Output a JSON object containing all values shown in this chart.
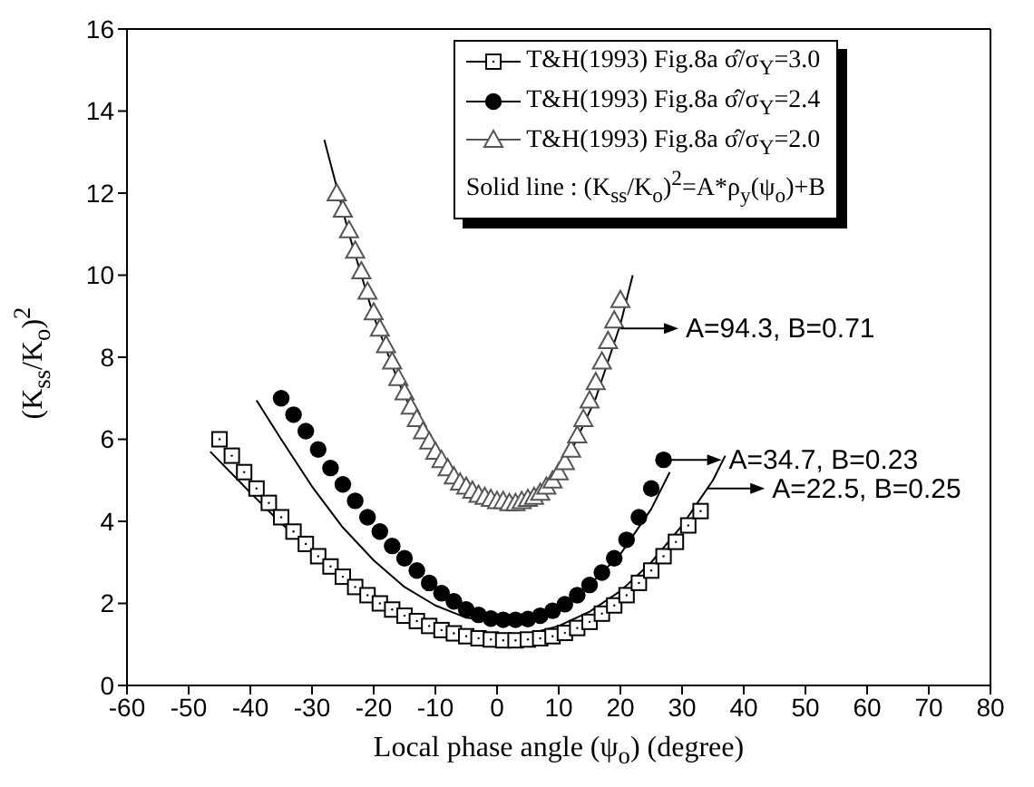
{
  "chart_data": {
    "type": "scatter",
    "xlabel": "Local phase angle (ψ$_{o}$) (degree)",
    "ylabel": "(K$_{ss}$/K$_{o}$)$^{2}$",
    "xlim": [
      -60,
      80
    ],
    "xticks": [
      -60,
      -50,
      -40,
      -30,
      -20,
      -10,
      0,
      10,
      20,
      30,
      40,
      50,
      60,
      70,
      80
    ],
    "ylim": [
      0,
      16
    ],
    "yticks": [
      0,
      2,
      4,
      6,
      8,
      10,
      12,
      14,
      16
    ],
    "legend": "top right",
    "series": [
      {
        "name": "T&H(1993) Fig.8a σ̂/σ$_{Y}$=3.0",
        "marker": "square",
        "color": "#000000",
        "x": [
          -45,
          -43,
          -41,
          -39,
          -37,
          -35,
          -33,
          -31,
          -29,
          -27,
          -25,
          -23,
          -21,
          -19,
          -17,
          -15,
          -13,
          -11,
          -9,
          -7,
          -5,
          -3,
          -1,
          1,
          3,
          5,
          7,
          9,
          11,
          13,
          15,
          17,
          19,
          21,
          23,
          25,
          27,
          29,
          31,
          33
        ],
        "values": [
          6.0,
          5.6,
          5.2,
          4.8,
          4.45,
          4.1,
          3.75,
          3.45,
          3.15,
          2.9,
          2.65,
          2.4,
          2.2,
          2.0,
          1.85,
          1.7,
          1.57,
          1.45,
          1.35,
          1.27,
          1.2,
          1.15,
          1.12,
          1.1,
          1.1,
          1.12,
          1.15,
          1.2,
          1.28,
          1.4,
          1.55,
          1.75,
          1.95,
          2.2,
          2.5,
          2.8,
          3.15,
          3.5,
          3.9,
          4.25
        ]
      },
      {
        "name": "T&H(1993) Fig.8a σ̂/σ$_{Y}$=2.4",
        "marker": "circle",
        "color": "#000000",
        "x": [
          -35,
          -33,
          -31,
          -29,
          -27,
          -25,
          -23,
          -21,
          -19,
          -17,
          -15,
          -13,
          -11,
          -9,
          -7,
          -5,
          -3,
          -1,
          1,
          3,
          5,
          7,
          9,
          11,
          13,
          15,
          17,
          19,
          21,
          23,
          25,
          27
        ],
        "values": [
          7.0,
          6.6,
          6.2,
          5.75,
          5.3,
          4.9,
          4.5,
          4.1,
          3.75,
          3.4,
          3.1,
          2.8,
          2.5,
          2.25,
          2.05,
          1.85,
          1.72,
          1.63,
          1.6,
          1.6,
          1.62,
          1.7,
          1.82,
          1.98,
          2.2,
          2.45,
          2.75,
          3.1,
          3.55,
          4.1,
          4.8,
          5.5
        ]
      },
      {
        "name": "T&H(1993) Fig.8a σ̂/σ$_{Y}$=2.0",
        "marker": "triangle",
        "color": "#555555",
        "x": [
          -26,
          -25,
          -24,
          -23,
          -22,
          -21,
          -20,
          -19,
          -18,
          -17,
          -16,
          -15,
          -14,
          -13,
          -12,
          -11,
          -10,
          -9,
          -8,
          -7,
          -6,
          -5,
          -4,
          -3,
          -2,
          -1,
          0,
          1,
          2,
          3,
          4,
          5,
          6,
          7,
          8,
          9,
          10,
          11,
          12,
          13,
          14,
          15,
          16,
          17,
          18,
          19,
          20
        ],
        "values": [
          12.0,
          11.6,
          11.1,
          10.6,
          10.1,
          9.6,
          9.1,
          8.7,
          8.3,
          7.9,
          7.5,
          7.15,
          6.8,
          6.5,
          6.2,
          5.95,
          5.7,
          5.5,
          5.3,
          5.1,
          4.95,
          4.85,
          4.75,
          4.65,
          4.6,
          4.55,
          4.5,
          4.5,
          4.45,
          4.45,
          4.5,
          4.55,
          4.6,
          4.7,
          4.85,
          5.0,
          5.2,
          5.45,
          5.75,
          6.1,
          6.5,
          6.95,
          7.4,
          7.9,
          8.4,
          8.9,
          9.4
        ]
      },
      {
        "type": "line",
        "marker": "none",
        "color": "#000000",
        "x": [
          -46.5,
          -40,
          -35,
          -30,
          -25,
          -20,
          -15,
          -10,
          -5,
          0,
          5,
          10,
          15,
          20,
          25,
          30,
          35,
          37
        ],
        "values": [
          5.7,
          4.7,
          3.95,
          3.3,
          2.7,
          2.2,
          1.8,
          1.5,
          1.3,
          1.2,
          1.25,
          1.45,
          1.8,
          2.3,
          3.0,
          3.9,
          5.0,
          5.6
        ]
      },
      {
        "type": "line",
        "marker": "none",
        "color": "#000000",
        "x": [
          -39,
          -35,
          -30,
          -25,
          -20,
          -15,
          -10,
          -5,
          0,
          5,
          10,
          15,
          20,
          25,
          28
        ],
        "values": [
          6.95,
          6.0,
          4.85,
          3.85,
          3.05,
          2.4,
          1.95,
          1.65,
          1.55,
          1.65,
          1.95,
          2.45,
          3.2,
          4.3,
          5.2
        ]
      },
      {
        "type": "line",
        "marker": "none",
        "color": "#000000",
        "x": [
          -28,
          -24,
          -20,
          -16,
          -12,
          -8,
          -4,
          0,
          4,
          8,
          12,
          16,
          20,
          22
        ],
        "values": [
          13.3,
          11.0,
          9.0,
          7.4,
          6.1,
          5.2,
          4.7,
          4.5,
          4.55,
          4.9,
          5.7,
          7.0,
          8.8,
          10.0
        ]
      }
    ],
    "annotations": [
      "Solid line : (K$_{ss}$/K$_{o}$)$^{2}$=A*ρ$_{y}$(ψ$_{o}$)+B",
      {
        "text": "A=94.3, B=0.71",
        "x": 20,
        "y": 8.7
      },
      {
        "text": "A=34.7, B=0.23",
        "x": 27,
        "y": 5.5
      },
      {
        "text": "A=22.5, B=0.25",
        "x": 34,
        "y": 4.8
      }
    ]
  }
}
